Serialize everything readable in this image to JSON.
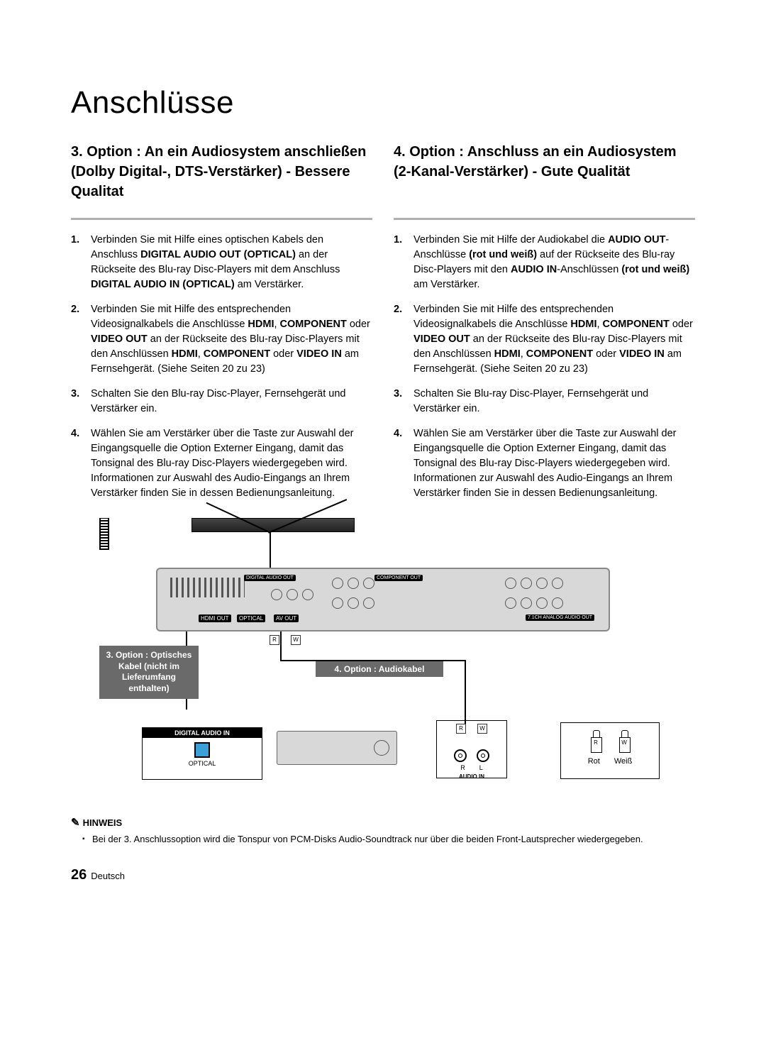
{
  "page": {
    "title": "Anschlüsse",
    "number": "26",
    "lang": "Deutsch"
  },
  "left": {
    "heading": "3. Option : An ein Audiosystem anschließen (Dolby Digital-, DTS-Verstärker) - Bessere Qualitat",
    "items": [
      "Verbinden Sie mit Hilfe eines optischen Kabels den Anschluss <b>DIGITAL AUDIO OUT (OPTICAL)</b> an der Rückseite des Blu-ray Disc-Players mit dem Anschluss <b>DIGITAL AUDIO IN (OPTICAL)</b> am Verstärker.",
      "Verbinden Sie mit Hilfe des entsprechenden Videosignalkabels die Anschlüsse <b>HDMI</b>, <b>COMPONENT</b> oder <b>VIDEO OUT</b> an der Rückseite des Blu-ray Disc-Players mit den Anschlüssen <b>HDMI</b>, <b>COMPONENT</b> oder <b>VIDEO IN</b> am Fernsehgerät. (Siehe Seiten 20 zu 23)",
      "Schalten Sie den Blu-ray Disc-Player, Fernsehgerät und Verstärker ein.",
      "Wählen Sie am Verstärker über die Taste zur Auswahl der Eingangsquelle die Option Externer Eingang, damit das Tonsignal des Blu-ray Disc-Players wiedergegeben wird. Informationen zur Auswahl des Audio-Eingangs an Ihrem Verstärker finden Sie in dessen Bedienungsanleitung."
    ]
  },
  "right": {
    "heading": "4. Option : Anschluss an ein Audiosystem (2-Kanal-Verstärker) - Gute Qualität",
    "items": [
      "Verbinden Sie mit Hilfe der Audiokabel die <b>AUDIO OUT</b>-Anschlüsse <b>(rot und weiß)</b> auf der Rückseite des Blu-ray Disc-Players mit den <b>AUDIO IN</b>-Anschlüssen <b>(rot und weiß)</b> am Verstärker.",
      "Verbinden Sie mit Hilfe des entsprechenden Videosignalkabels die Anschlüsse <b>HDMI</b>, <b>COMPONENT</b> oder <b>VIDEO OUT</b> an der Rückseite des Blu-ray Disc-Players mit den Anschlüssen <b>HDMI</b>, <b>COMPONENT</b> oder <b>VIDEO IN</b> am Fernsehgerät. (Siehe Seiten 20 zu 23)",
      "Schalten Sie Blu-ray Disc-Player, Fernsehgerät und Verstärker ein.",
      "Wählen Sie am Verstärker über die Taste zur Auswahl der Eingangsquelle die Option Externer Eingang, damit das Tonsignal des Blu-ray Disc-Players wiedergegeben wird. Informationen zur Auswahl des Audio-Eingangs an Ihrem Verstärker finden Sie in dessen Bedienungsanleitung."
    ]
  },
  "diagram": {
    "callout3": "3. Option : Optisches Kabel (nicht im Lieferumfang enthalten)",
    "callout4": "4. Option : Audiokabel",
    "labels": {
      "hdmi_out": "HDMI OUT",
      "optical": "OPTICAL",
      "av_out": "AV OUT",
      "digital_audio_out": "DIGITAL AUDIO OUT",
      "component_out": "COMPONENT OUT",
      "analog71": "7.1CH ANALOG AUDIO OUT",
      "R": "R",
      "W": "W",
      "digital_audio_in": "DIGITAL AUDIO IN",
      "optical_foot": "OPTICAL",
      "audio_in": "AUDIO IN",
      "circ_R": "R",
      "circ_L": "L",
      "rot": "Rot",
      "weiss": "Weiß"
    },
    "colors": {
      "callout_bg": "#6a6a6a",
      "unit_bg": "#d8d8d8",
      "optical_port": "#39a0d8"
    }
  },
  "hint": {
    "head": "HINWEIS",
    "body": "Bei der 3. Anschlussoption wird die Tonspur von PCM-Disks Audio-Soundtrack nur über die beiden Front-Lautsprecher wiedergegeben."
  }
}
